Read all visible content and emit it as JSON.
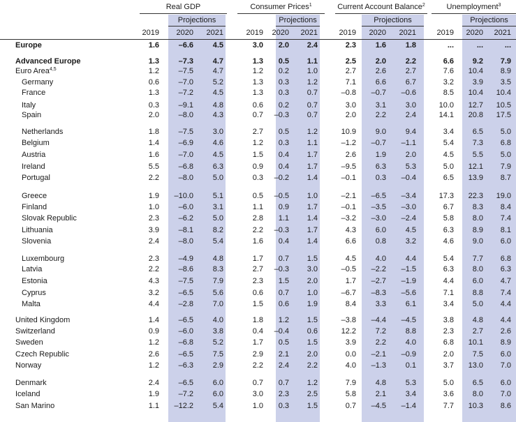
{
  "groups": [
    {
      "label": "Real GDP",
      "note": ""
    },
    {
      "label": "Consumer Prices",
      "note": "1"
    },
    {
      "label": "Current Account Balance",
      "note": "2"
    },
    {
      "label": "Unemployment",
      "note": "3"
    }
  ],
  "projections_label": "Projections",
  "years": [
    "2019",
    "2020",
    "2021"
  ],
  "rows": [
    {
      "name": "Europe",
      "note": "",
      "bold": true,
      "indent": 0,
      "vals": [
        "1.6",
        "–6.6",
        "4.5",
        "3.0",
        "2.0",
        "2.4",
        "2.3",
        "1.6",
        "1.8",
        "...",
        "...",
        "..."
      ]
    },
    {
      "name": "Advanced Europe",
      "note": "",
      "bold": true,
      "indent": 0,
      "vals": [
        "1.3",
        "–7.3",
        "4.7",
        "1.3",
        "0.5",
        "1.1",
        "2.5",
        "2.0",
        "2.2",
        "6.6",
        "9.2",
        "7.9"
      ]
    },
    {
      "name": "Euro Area",
      "note": "4,5",
      "bold": false,
      "indent": 0,
      "vals": [
        "1.2",
        "–7.5",
        "4.7",
        "1.2",
        "0.2",
        "1.0",
        "2.7",
        "2.6",
        "2.7",
        "7.6",
        "10.4",
        "8.9"
      ]
    },
    {
      "name": "Germany",
      "note": "",
      "bold": false,
      "indent": 1,
      "vals": [
        "0.6",
        "–7.0",
        "5.2",
        "1.3",
        "0.3",
        "1.2",
        "7.1",
        "6.6",
        "6.7",
        "3.2",
        "3.9",
        "3.5"
      ]
    },
    {
      "name": "France",
      "note": "",
      "bold": false,
      "indent": 1,
      "vals": [
        "1.3",
        "–7.2",
        "4.5",
        "1.3",
        "0.3",
        "0.7",
        "–0.8",
        "–0.7",
        "–0.6",
        "8.5",
        "10.4",
        "10.4"
      ]
    },
    {
      "name": "Italy",
      "note": "",
      "bold": false,
      "indent": 1,
      "vals": [
        "0.3",
        "–9.1",
        "4.8",
        "0.6",
        "0.2",
        "0.7",
        "3.0",
        "3.1",
        "3.0",
        "10.0",
        "12.7",
        "10.5"
      ]
    },
    {
      "name": "Spain",
      "note": "",
      "bold": false,
      "indent": 1,
      "vals": [
        "2.0",
        "–8.0",
        "4.3",
        "0.7",
        "–0.3",
        "0.7",
        "2.0",
        "2.2",
        "2.4",
        "14.1",
        "20.8",
        "17.5"
      ]
    },
    {
      "name": "Netherlands",
      "note": "",
      "bold": false,
      "indent": 1,
      "vals": [
        "1.8",
        "–7.5",
        "3.0",
        "2.7",
        "0.5",
        "1.2",
        "10.9",
        "9.0",
        "9.4",
        "3.4",
        "6.5",
        "5.0"
      ]
    },
    {
      "name": "Belgium",
      "note": "",
      "bold": false,
      "indent": 1,
      "vals": [
        "1.4",
        "–6.9",
        "4.6",
        "1.2",
        "0.3",
        "1.1",
        "–1.2",
        "–0.7",
        "–1.1",
        "5.4",
        "7.3",
        "6.8"
      ]
    },
    {
      "name": "Austria",
      "note": "",
      "bold": false,
      "indent": 1,
      "vals": [
        "1.6",
        "–7.0",
        "4.5",
        "1.5",
        "0.4",
        "1.7",
        "2.6",
        "1.9",
        "2.0",
        "4.5",
        "5.5",
        "5.0"
      ]
    },
    {
      "name": "Ireland",
      "note": "",
      "bold": false,
      "indent": 1,
      "vals": [
        "5.5",
        "–6.8",
        "6.3",
        "0.9",
        "0.4",
        "1.7",
        "–9.5",
        "6.3",
        "5.3",
        "5.0",
        "12.1",
        "7.9"
      ]
    },
    {
      "name": "Portugal",
      "note": "",
      "bold": false,
      "indent": 1,
      "vals": [
        "2.2",
        "–8.0",
        "5.0",
        "0.3",
        "–0.2",
        "1.4",
        "–0.1",
        "0.3",
        "–0.4",
        "6.5",
        "13.9",
        "8.7"
      ]
    },
    {
      "name": "Greece",
      "note": "",
      "bold": false,
      "indent": 1,
      "vals": [
        "1.9",
        "–10.0",
        "5.1",
        "0.5",
        "–0.5",
        "1.0",
        "–2.1",
        "–6.5",
        "–3.4",
        "17.3",
        "22.3",
        "19.0"
      ]
    },
    {
      "name": "Finland",
      "note": "",
      "bold": false,
      "indent": 1,
      "vals": [
        "1.0",
        "–6.0",
        "3.1",
        "1.1",
        "0.9",
        "1.7",
        "–0.1",
        "–3.5",
        "–3.0",
        "6.7",
        "8.3",
        "8.4"
      ]
    },
    {
      "name": "Slovak Republic",
      "note": "",
      "bold": false,
      "indent": 1,
      "vals": [
        "2.3",
        "–6.2",
        "5.0",
        "2.8",
        "1.1",
        "1.4",
        "–3.2",
        "–3.0",
        "–2.4",
        "5.8",
        "8.0",
        "7.4"
      ]
    },
    {
      "name": "Lithuania",
      "note": "",
      "bold": false,
      "indent": 1,
      "vals": [
        "3.9",
        "–8.1",
        "8.2",
        "2.2",
        "–0.3",
        "1.7",
        "4.3",
        "6.0",
        "4.5",
        "6.3",
        "8.9",
        "8.1"
      ]
    },
    {
      "name": "Slovenia",
      "note": "",
      "bold": false,
      "indent": 1,
      "vals": [
        "2.4",
        "–8.0",
        "5.4",
        "1.6",
        "0.4",
        "1.4",
        "6.6",
        "0.8",
        "3.2",
        "4.6",
        "9.0",
        "6.0"
      ]
    },
    {
      "name": "Luxembourg",
      "note": "",
      "bold": false,
      "indent": 1,
      "vals": [
        "2.3",
        "–4.9",
        "4.8",
        "1.7",
        "0.7",
        "1.5",
        "4.5",
        "4.0",
        "4.4",
        "5.4",
        "7.7",
        "6.8"
      ]
    },
    {
      "name": "Latvia",
      "note": "",
      "bold": false,
      "indent": 1,
      "vals": [
        "2.2",
        "–8.6",
        "8.3",
        "2.7",
        "–0.3",
        "3.0",
        "–0.5",
        "–2.2",
        "–1.5",
        "6.3",
        "8.0",
        "6.3"
      ]
    },
    {
      "name": "Estonia",
      "note": "",
      "bold": false,
      "indent": 1,
      "vals": [
        "4.3",
        "–7.5",
        "7.9",
        "2.3",
        "1.5",
        "2.0",
        "1.7",
        "–2.7",
        "–1.9",
        "4.4",
        "6.0",
        "4.7"
      ]
    },
    {
      "name": "Cyprus",
      "note": "",
      "bold": false,
      "indent": 1,
      "vals": [
        "3.2",
        "–6.5",
        "5.6",
        "0.6",
        "0.7",
        "1.0",
        "–6.7",
        "–8.3",
        "–5.6",
        "7.1",
        "8.8",
        "7.4"
      ]
    },
    {
      "name": "Malta",
      "note": "",
      "bold": false,
      "indent": 1,
      "vals": [
        "4.4",
        "–2.8",
        "7.0",
        "1.5",
        "0.6",
        "1.9",
        "8.4",
        "3.3",
        "6.1",
        "3.4",
        "5.0",
        "4.4"
      ]
    },
    {
      "name": "United Kingdom",
      "note": "",
      "bold": false,
      "indent": 0,
      "vals": [
        "1.4",
        "–6.5",
        "4.0",
        "1.8",
        "1.2",
        "1.5",
        "–3.8",
        "–4.4",
        "–4.5",
        "3.8",
        "4.8",
        "4.4"
      ]
    },
    {
      "name": "Switzerland",
      "note": "",
      "bold": false,
      "indent": 0,
      "vals": [
        "0.9",
        "–6.0",
        "3.8",
        "0.4",
        "–0.4",
        "0.6",
        "12.2",
        "7.2",
        "8.8",
        "2.3",
        "2.7",
        "2.6"
      ]
    },
    {
      "name": "Sweden",
      "note": "",
      "bold": false,
      "indent": 0,
      "vals": [
        "1.2",
        "–6.8",
        "5.2",
        "1.7",
        "0.5",
        "1.5",
        "3.9",
        "2.2",
        "4.0",
        "6.8",
        "10.1",
        "8.9"
      ]
    },
    {
      "name": "Czech Republic",
      "note": "",
      "bold": false,
      "indent": 0,
      "vals": [
        "2.6",
        "–6.5",
        "7.5",
        "2.9",
        "2.1",
        "2.0",
        "0.0",
        "–2.1",
        "–0.9",
        "2.0",
        "7.5",
        "6.0"
      ]
    },
    {
      "name": "Norway",
      "note": "",
      "bold": false,
      "indent": 0,
      "vals": [
        "1.2",
        "–6.3",
        "2.9",
        "2.2",
        "2.4",
        "2.2",
        "4.0",
        "–1.3",
        "0.1",
        "3.7",
        "13.0",
        "7.0"
      ]
    },
    {
      "name": "Denmark",
      "note": "",
      "bold": false,
      "indent": 0,
      "vals": [
        "2.4",
        "–6.5",
        "6.0",
        "0.7",
        "0.7",
        "1.2",
        "7.9",
        "4.8",
        "5.3",
        "5.0",
        "6.5",
        "6.0"
      ]
    },
    {
      "name": "Iceland",
      "note": "",
      "bold": false,
      "indent": 0,
      "vals": [
        "1.9",
        "–7.2",
        "6.0",
        "3.0",
        "2.3",
        "2.5",
        "5.8",
        "2.1",
        "3.4",
        "3.6",
        "8.0",
        "7.0"
      ]
    },
    {
      "name": "San Marino",
      "note": "",
      "bold": false,
      "indent": 0,
      "vals": [
        "1.1",
        "–12.2",
        "5.4",
        "1.0",
        "0.3",
        "1.5",
        "0.7",
        "–4.5",
        "–1.4",
        "7.7",
        "10.3",
        "8.6"
      ]
    }
  ]
}
